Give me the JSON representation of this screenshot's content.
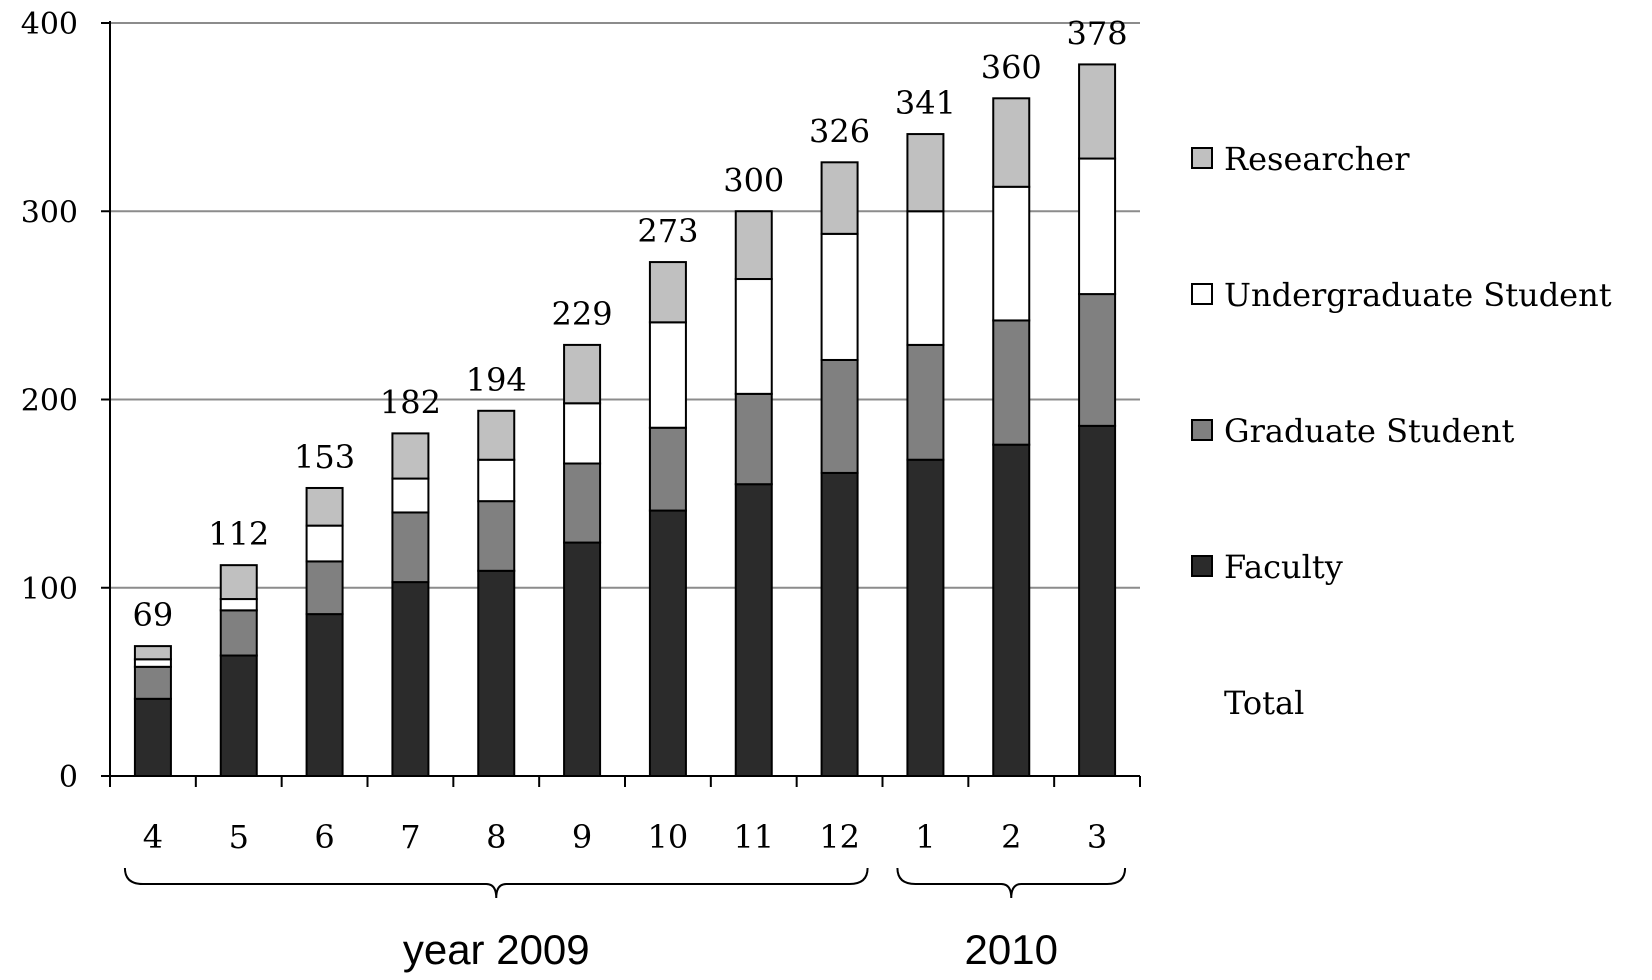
{
  "chart_data": {
    "type": "bar",
    "stacked": true,
    "categories": [
      "4",
      "5",
      "6",
      "7",
      "8",
      "9",
      "10",
      "11",
      "12",
      "1",
      "2",
      "3"
    ],
    "series": [
      {
        "name": "Faculty",
        "color": "#2b2b2b",
        "values": [
          41,
          64,
          86,
          103,
          109,
          124,
          141,
          155,
          161,
          168,
          176,
          186
        ]
      },
      {
        "name": "Graduate Student",
        "color": "#808080",
        "values": [
          17,
          24,
          28,
          37,
          37,
          42,
          44,
          48,
          60,
          61,
          66,
          70
        ]
      },
      {
        "name": "Undergraduate Student",
        "color": "#ffffff",
        "values": [
          4,
          6,
          19,
          18,
          22,
          32,
          56,
          61,
          67,
          71,
          71,
          72
        ]
      },
      {
        "name": "Researcher",
        "color": "#c0c0c0",
        "values": [
          7,
          18,
          20,
          24,
          26,
          31,
          32,
          36,
          38,
          41,
          47,
          50
        ]
      }
    ],
    "totals": [
      69,
      112,
      153,
      182,
      194,
      229,
      273,
      300,
      326,
      341,
      360,
      378
    ],
    "total_label": "Total",
    "legend_order": [
      "Researcher",
      "Undergraduate Student",
      "Graduate Student",
      "Faculty",
      "Total"
    ],
    "legend_position": "right",
    "yticks": [
      0,
      100,
      200,
      300,
      400
    ],
    "ylim": [
      0,
      400
    ],
    "grid": true,
    "groups": [
      {
        "label": "year 2009",
        "categories": [
          "4",
          "5",
          "6",
          "7",
          "8",
          "9",
          "10",
          "11",
          "12"
        ]
      },
      {
        "label": "2010",
        "categories": [
          "1",
          "2",
          "3"
        ]
      }
    ],
    "title": "",
    "xlabel": "",
    "ylabel": ""
  }
}
